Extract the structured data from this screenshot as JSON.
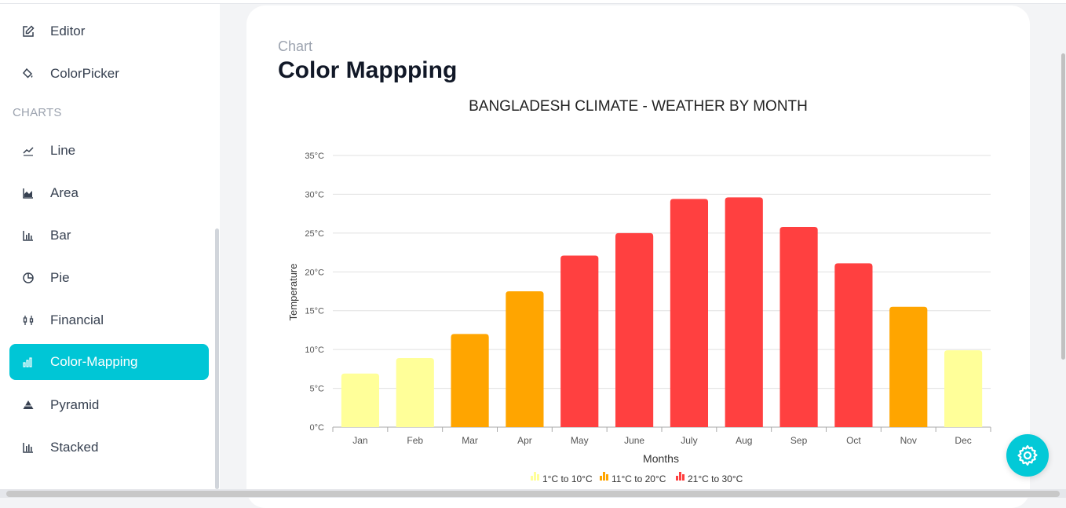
{
  "sidebar": {
    "items_top": [
      {
        "label": "Editor",
        "icon": "edit-icon"
      },
      {
        "label": "ColorPicker",
        "icon": "paint-bucket-icon"
      }
    ],
    "section_label": "CHARTS",
    "chart_items": [
      {
        "label": "Line",
        "icon": "line-chart-icon"
      },
      {
        "label": "Area",
        "icon": "area-chart-icon"
      },
      {
        "label": "Bar",
        "icon": "bar-chart-icon"
      },
      {
        "label": "Pie",
        "icon": "pie-chart-icon"
      },
      {
        "label": "Financial",
        "icon": "candlestick-icon"
      },
      {
        "label": "Color-Mapping",
        "icon": "bar-chart-icon",
        "active": true
      },
      {
        "label": "Pyramid",
        "icon": "pyramid-icon"
      },
      {
        "label": "Stacked",
        "icon": "stacked-chart-icon"
      }
    ]
  },
  "header": {
    "crumb": "Chart",
    "title": "Color Mappping"
  },
  "colors": {
    "accent": "#00c6d6",
    "low": "#ffff99",
    "mid": "#ffa500",
    "high": "#ff4040"
  },
  "chart_data": {
    "type": "bar",
    "title": "BANGLADESH CLIMATE - WEATHER BY MONTH",
    "xlabel": "Months",
    "ylabel": "Temperature",
    "ylim": [
      0,
      35
    ],
    "yticks": [
      "0°C",
      "5°C",
      "10°C",
      "15°C",
      "20°C",
      "25°C",
      "30°C",
      "35°C"
    ],
    "categories": [
      "Jan",
      "Feb",
      "Mar",
      "Apr",
      "May",
      "June",
      "July",
      "Aug",
      "Sep",
      "Oct",
      "Nov",
      "Dec"
    ],
    "values": [
      6.9,
      8.9,
      12.0,
      17.5,
      22.1,
      25.0,
      29.4,
      29.6,
      25.8,
      21.1,
      15.5,
      9.9
    ],
    "grid": true,
    "legend_position": "bottom",
    "legend": [
      {
        "label": "1°C to 10°C",
        "color": "#ffff99",
        "min": 1,
        "max": 10
      },
      {
        "label": "11°C to 20°C",
        "color": "#ffa500",
        "min": 11,
        "max": 20
      },
      {
        "label": "21°C to 30°C",
        "color": "#ff4040",
        "min": 21,
        "max": 30
      }
    ]
  }
}
